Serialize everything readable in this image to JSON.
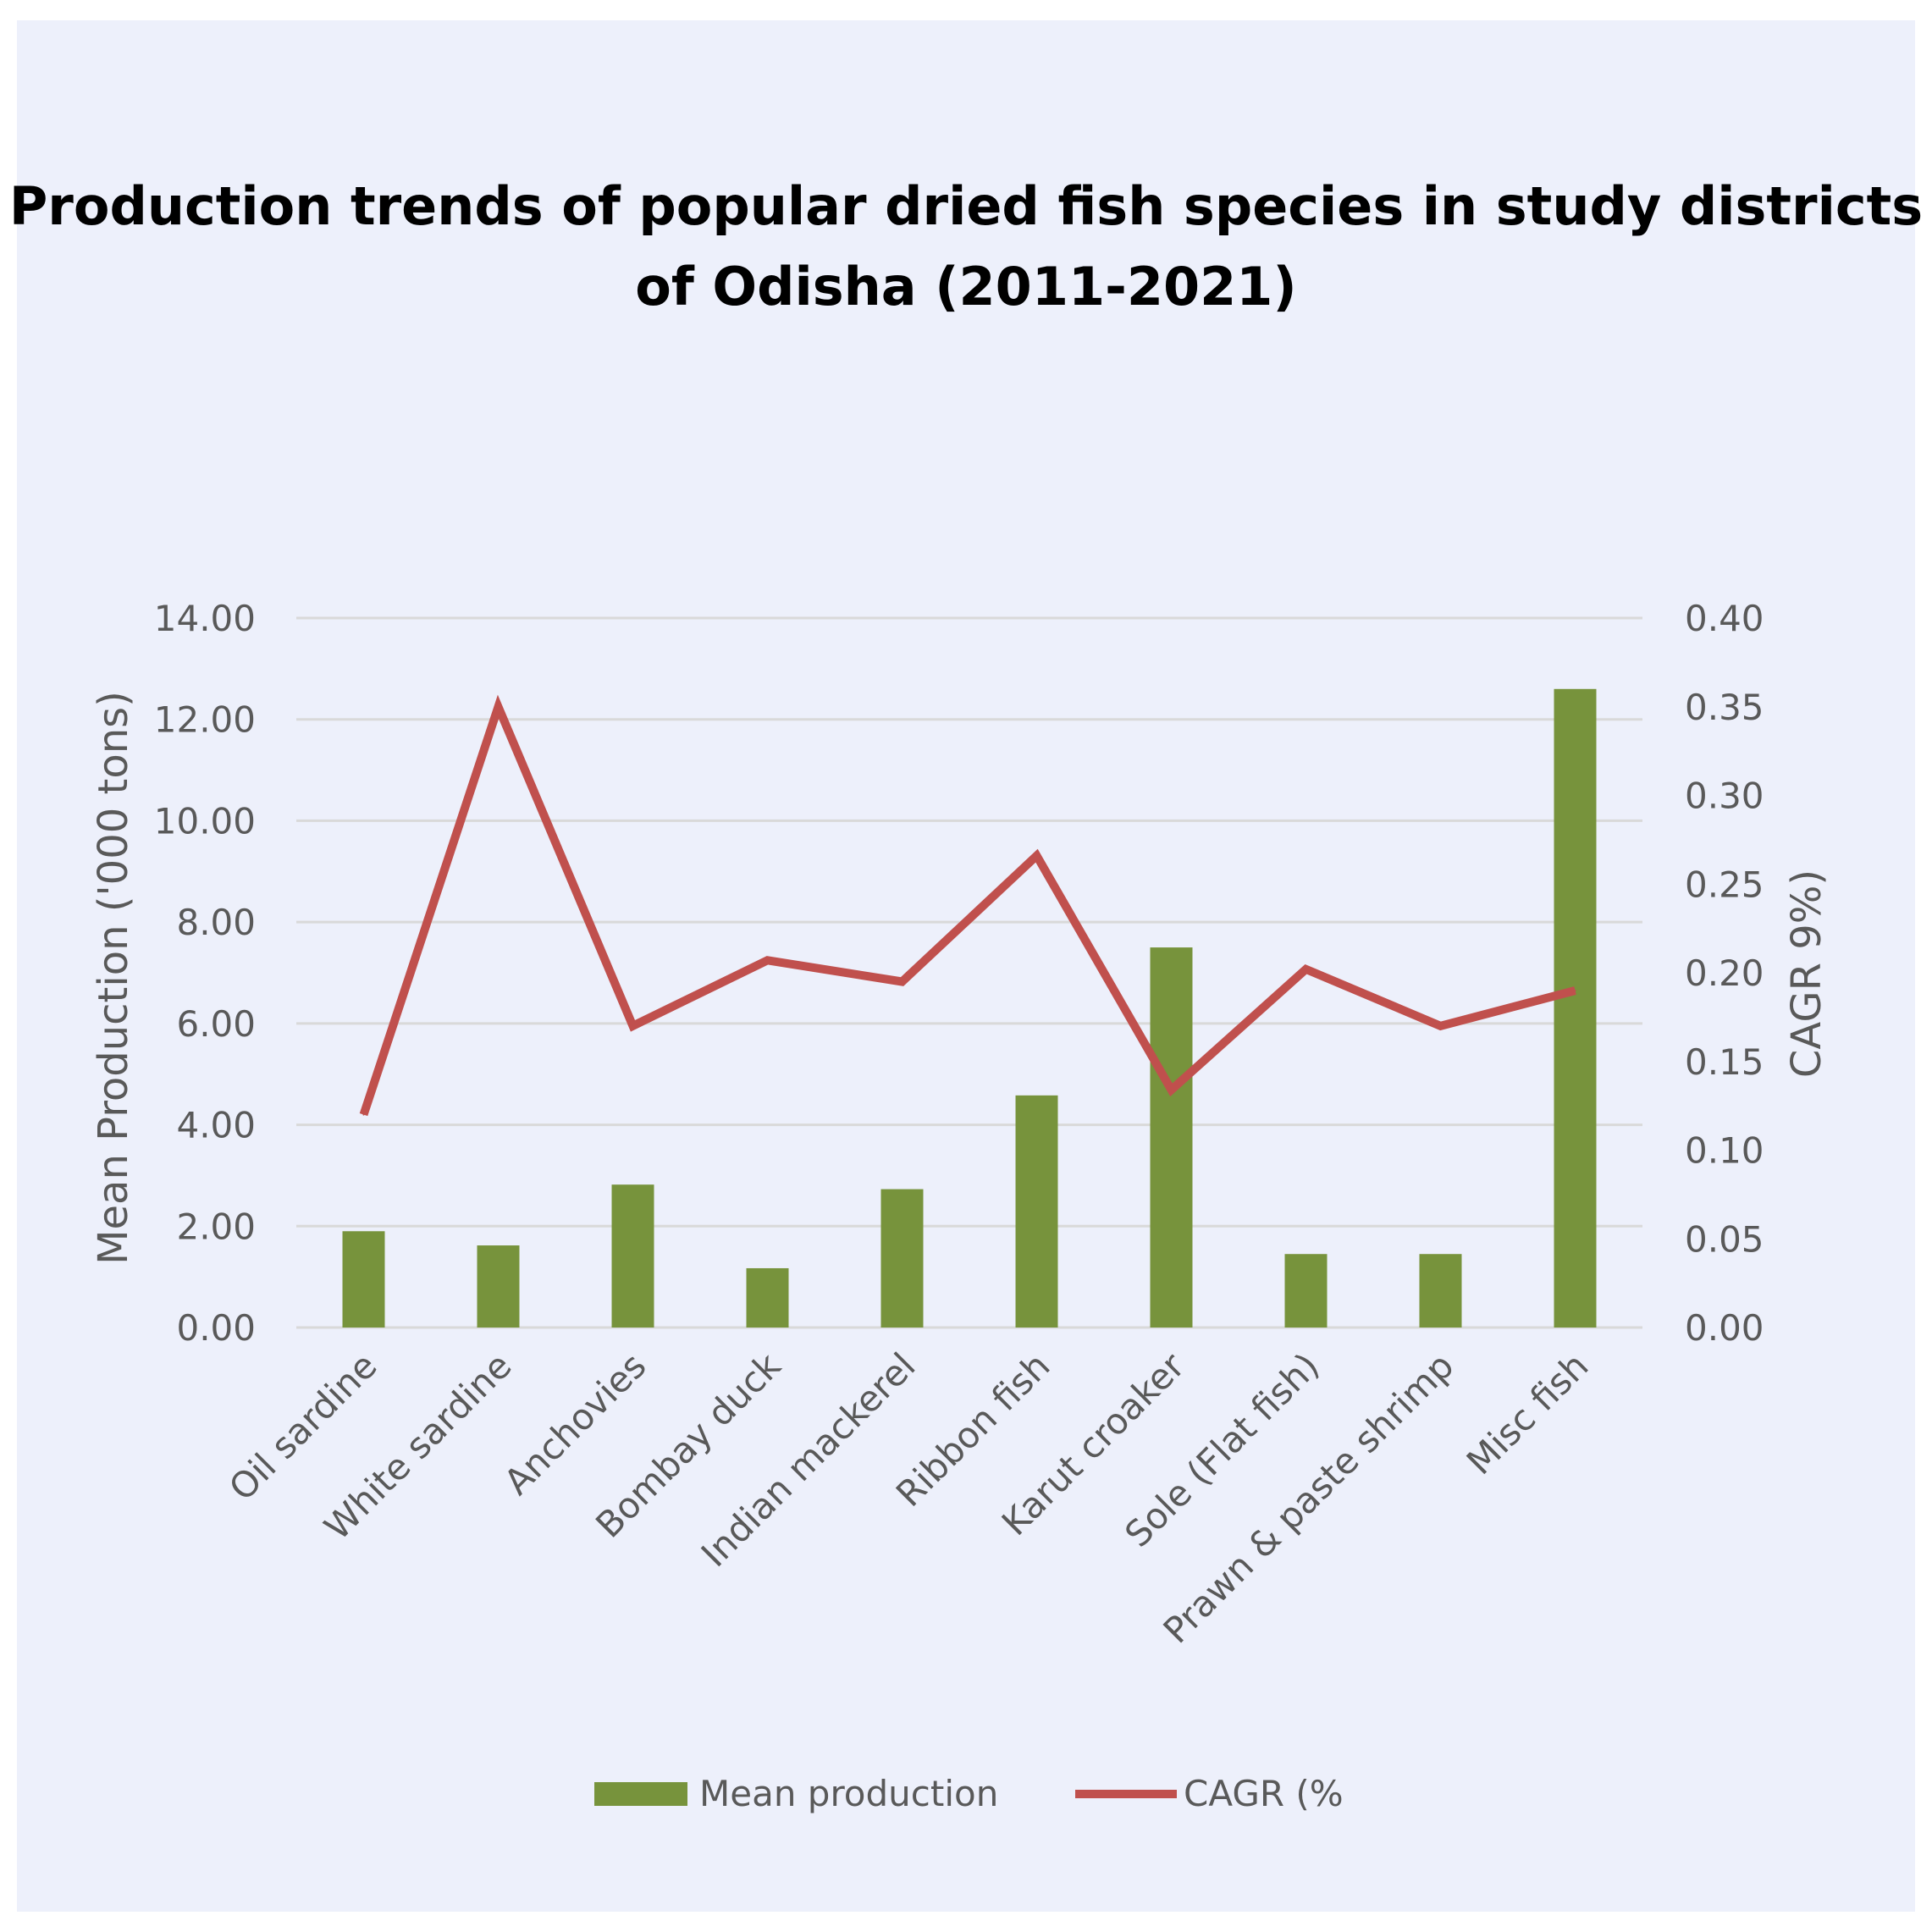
{
  "chart_data": {
    "type": "bar+line",
    "title_lines": [
      "Production trends of popular dried fish species in study districts",
      "of Odisha (2011-2021)"
    ],
    "categories": [
      "Oil sardine",
      "White sardine",
      "Anchovies",
      "Bombay duck",
      "Indian mackerel",
      "Ribbon fish",
      "Karut croaker",
      "Sole (Flat fish)",
      "Prawn & paste shrimp",
      "Misc fish"
    ],
    "series": [
      {
        "name": "Mean production",
        "type": "bar",
        "axis": "left",
        "color": "#77933c",
        "values": [
          1.9,
          1.62,
          2.82,
          1.17,
          2.73,
          4.58,
          7.5,
          1.45,
          1.45,
          12.6
        ]
      },
      {
        "name": "CAGR (%",
        "type": "line",
        "axis": "right",
        "color": "#c0504d",
        "values": [
          0.12,
          0.35,
          0.17,
          0.207,
          0.195,
          0.266,
          0.134,
          0.202,
          0.17,
          0.19
        ]
      }
    ],
    "ylabel": "Mean Production ('000 tons)",
    "y2label": "CAGR 9%)",
    "ylim": [
      0,
      14
    ],
    "y2lim": [
      0,
      0.4
    ],
    "yticks": [
      "0.00",
      "2.00",
      "4.00",
      "6.00",
      "8.00",
      "10.00",
      "12.00",
      "14.00"
    ],
    "y2ticks": [
      "0.00",
      "0.05",
      "0.10",
      "0.15",
      "0.20",
      "0.25",
      "0.30",
      "0.35",
      "0.40"
    ],
    "grid": true,
    "legend_position": "bottom"
  },
  "colors": {
    "background": "#edf0fb",
    "grid": "#d9d9d9",
    "bar": "#77933c",
    "line": "#c0504d",
    "text": "#595959"
  }
}
